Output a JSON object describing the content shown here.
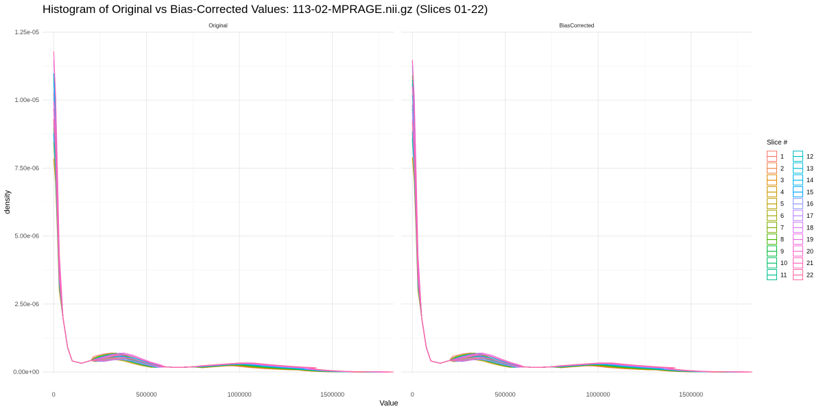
{
  "title": "Histogram of Original vs Bias-Corrected Values: 113-02-MPRAGE.nii.gz (Slices 01-22)",
  "chart_data": {
    "type": "line",
    "subtype": "density",
    "title": "Histogram of Original vs Bias-Corrected Values: 113-02-MPRAGE.nii.gz (Slices 01-22)",
    "xlabel": "Value",
    "ylabel": "density",
    "xlim": [
      -60000,
      1830000
    ],
    "ylim": [
      -2.5e-07,
      1.25e-05
    ],
    "x_ticks": [
      0,
      500000,
      1000000,
      1500000
    ],
    "x_tick_labels": [
      "0",
      "500000",
      "1000000",
      "1500000"
    ],
    "y_ticks": [
      0,
      2.5e-06,
      5e-06,
      7.5e-06,
      1e-05,
      1.25e-05
    ],
    "y_tick_labels": [
      "0.00e+00",
      "2.50e-06",
      "5.00e-06",
      "7.50e-06",
      "1.00e-05",
      "1.25e-05"
    ],
    "grid": true,
    "facets": [
      "Original",
      "BiasCorrected"
    ],
    "legend": {
      "title": "Slice #",
      "position": "right",
      "columns": 2,
      "entries": [
        "1",
        "2",
        "3",
        "4",
        "5",
        "6",
        "7",
        "8",
        "9",
        "10",
        "11",
        "12",
        "13",
        "14",
        "15",
        "16",
        "17",
        "18",
        "19",
        "20",
        "21",
        "22"
      ],
      "colors": [
        "#F8766D",
        "#EE8043",
        "#E08B00",
        "#CD9600",
        "#B79F00",
        "#9DA700",
        "#7CAE00",
        "#49B500",
        "#00BA38",
        "#00BE6C",
        "#00C08E",
        "#00BFC4",
        "#00BCD8",
        "#00B4EF",
        "#00A5FF",
        "#8E96FF",
        "#B983FF",
        "#D774F4",
        "#EA6AE4",
        "#F763D0",
        "#FF62B8",
        "#FF689F"
      ]
    },
    "series_shape": {
      "x": [
        0,
        10000,
        20000,
        30000,
        50000,
        75000,
        100000,
        150000,
        200000,
        250000,
        300000,
        350000,
        400000,
        450000,
        500000,
        550000,
        600000,
        650000,
        700000,
        750000,
        800000,
        850000,
        900000,
        950000,
        1000000,
        1050000,
        1100000,
        1150000,
        1200000,
        1250000,
        1300000,
        1350000,
        1400000,
        1450000,
        1500000,
        1550000,
        1600000,
        1650000,
        1700000,
        1730000
      ],
      "density": [
        1.12e-05,
        9.8e-06,
        7e-06,
        4.2e-06,
        2e-06,
        9e-07,
        4e-07,
        3.2e-07,
        4.2e-07,
        5.4e-07,
        6.2e-07,
        6.6e-07,
        5.8e-07,
        4.5e-07,
        3.3e-07,
        2.4e-07,
        1.9e-07,
        1.7e-07,
        1.75e-07,
        1.9e-07,
        2.1e-07,
        2.4e-07,
        2.7e-07,
        3e-07,
        3e-07,
        2.6e-07,
        2.2e-07,
        1.9e-07,
        1.6e-07,
        1.4e-07,
        1.1e-07,
        8e-08,
        5e-08,
        3e-08,
        1.5e-08,
        8e-09,
        4e-09,
        2e-09,
        1e-09,
        0.0
      ],
      "slice_variation": {
        "peak_at_zero_range": [
          9e-06,
          1.19e-05
        ],
        "second_mode_x_range": [
          330000,
          400000
        ],
        "third_mode_x_range": [
          930000,
          1280000
        ],
        "x_max_range": [
          1480000,
          1740000
        ]
      }
    }
  }
}
